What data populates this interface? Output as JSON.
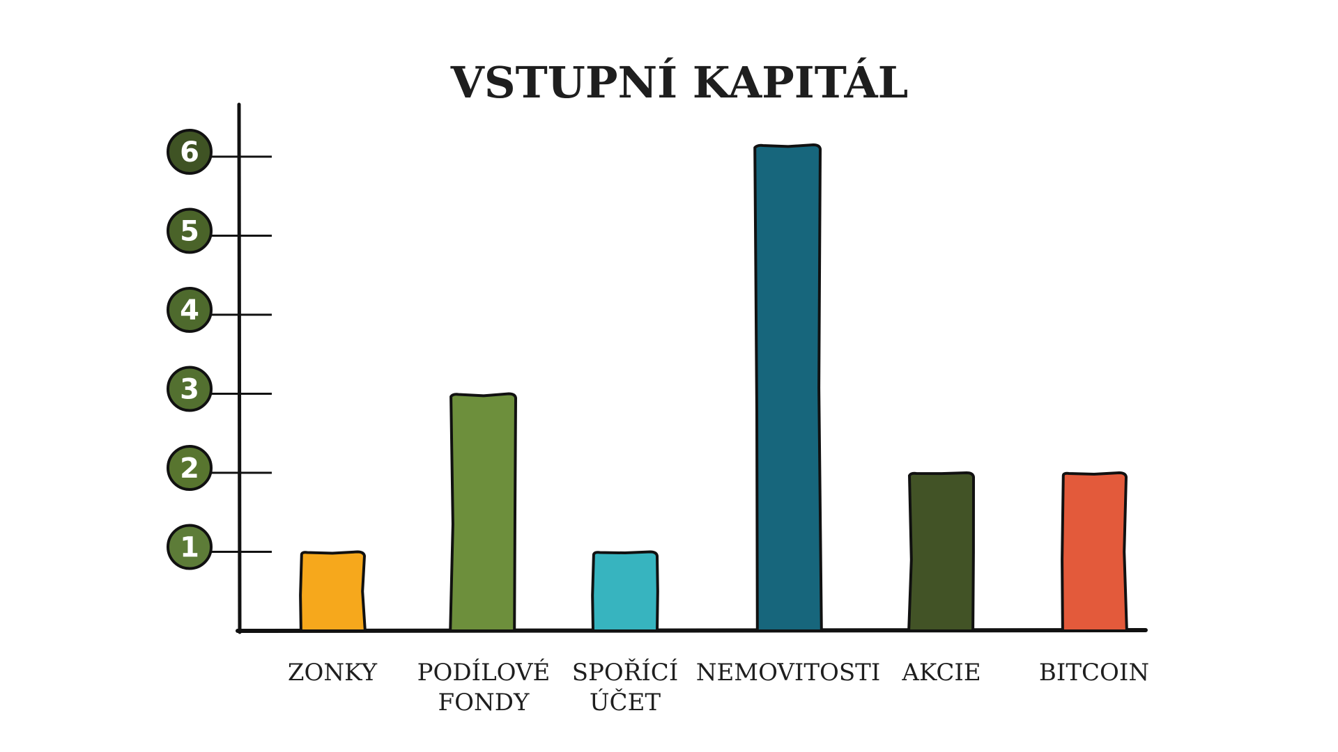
{
  "chart_data": {
    "type": "bar",
    "title": "VSTUPNÍ KAPITÁL",
    "xlabel": "",
    "ylabel": "",
    "categories": [
      [
        "ZONKY"
      ],
      [
        "PODÍLOVÉ",
        "FONDY"
      ],
      [
        "SPOŘÍCÍ",
        "ÚČET"
      ],
      [
        "NEMOVITOSTI"
      ],
      [
        "AKCIE"
      ],
      [
        "BITCOIN"
      ]
    ],
    "values": [
      1,
      3,
      1,
      6.15,
      2,
      2
    ],
    "bar_colors": [
      "#f6a81c",
      "#6d8f3c",
      "#37b4bf",
      "#17667c",
      "#425326",
      "#e35a3b"
    ],
    "ylim": [
      0,
      6.6
    ],
    "yticks": [
      "1",
      "2",
      "3",
      "4",
      "5",
      "6"
    ],
    "tick_badge_colors": [
      "#5d7c38",
      "#58752f",
      "#537030",
      "#4e6a2d",
      "#4a6329",
      "#3f5324"
    ],
    "grid": false,
    "legend": "none"
  }
}
